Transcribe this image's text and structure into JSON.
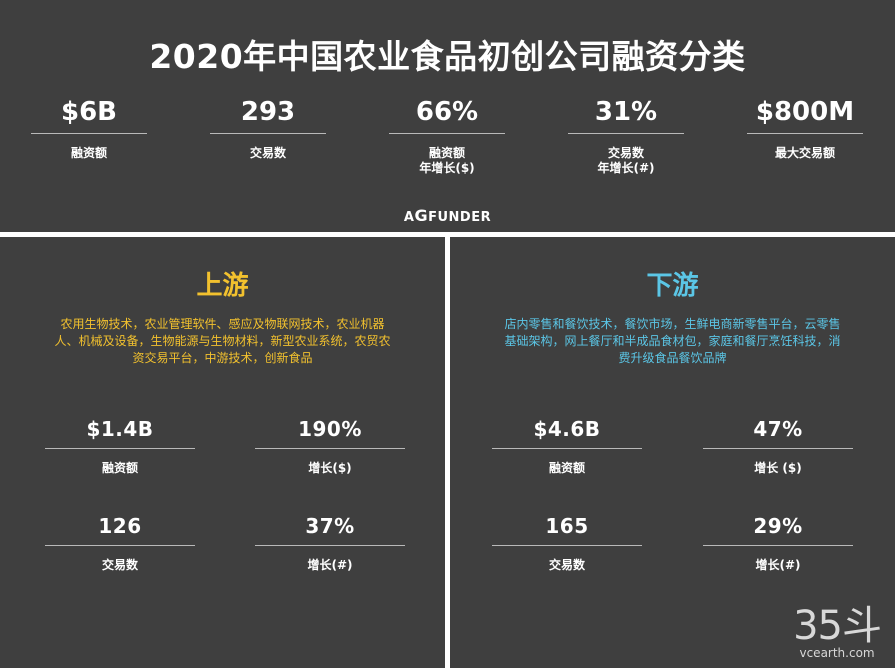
{
  "title": "2020年中国农业食品初创公司融资分类",
  "summary": [
    {
      "value": "$6B",
      "label": "融资额"
    },
    {
      "value": "293",
      "label": "交易数"
    },
    {
      "value": "66%",
      "label_line1": "融资额",
      "label_line2": "年增长($)"
    },
    {
      "value": "31%",
      "label_line1": "交易数",
      "label_line2": "年增长(#)"
    },
    {
      "value": "$800M",
      "label": "最大交易额"
    }
  ],
  "logo": {
    "text_a": "A",
    "text_g": "G",
    "text_rest": "FUNDER"
  },
  "upstream": {
    "heading": "上游",
    "description": "农用生物技术，农业管理软件、感应及物联网技术，农业机器人、机械及设备，生物能源与生物材料，新型农业系统，农贸农资交易平台，中游技术，创新食品",
    "stats": [
      {
        "value": "$1.4B",
        "label": "融资额"
      },
      {
        "value": "190%",
        "label": "增长($)"
      },
      {
        "value": "126",
        "label": "交易数"
      },
      {
        "value": "37%",
        "label": "增长(#)"
      }
    ]
  },
  "downstream": {
    "heading": "下游",
    "description": "店内零售和餐饮技术，餐饮市场，生鲜电商新零售平台，云零售基础架构，网上餐厅和半成品食材包，家庭和餐厅烹饪科技，消费升级食品餐饮品牌",
    "stats": [
      {
        "value": "$4.6B",
        "label": "融资额"
      },
      {
        "value": "47%",
        "label": "增长 ($)"
      },
      {
        "value": "165",
        "label": "交易数"
      },
      {
        "value": "29%",
        "label": "增长(#)"
      }
    ]
  },
  "watermark": {
    "big": "35斗",
    "small": "vcearth.com"
  }
}
